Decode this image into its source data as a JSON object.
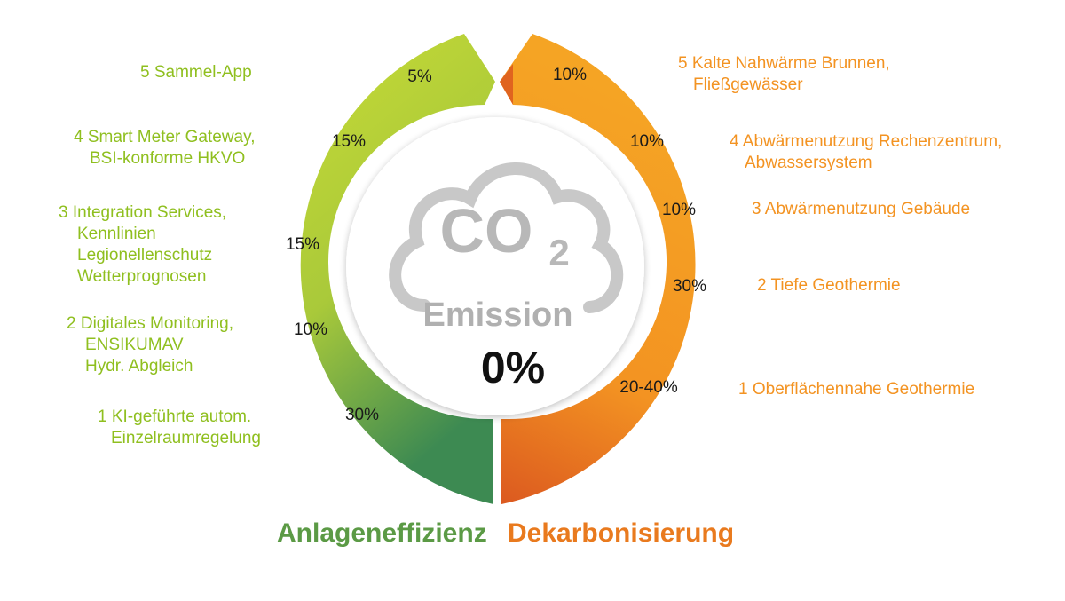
{
  "center": {
    "co2": "CO",
    "co2_sub": "2",
    "emission_label": "Emission",
    "emission_value": "0%"
  },
  "left_ring": {
    "title": "Anlageneffizienz",
    "title_color": "#5b9a45",
    "gradient_colors": [
      "#c5d937",
      "#a8c937",
      "#3e8a50"
    ],
    "segments": [
      {
        "value": "5%",
        "text": [
          "5 Sammel-App"
        ]
      },
      {
        "value": "15%",
        "text": [
          "4 Smart Meter Gateway,",
          "BSI-konforme HKVO"
        ]
      },
      {
        "value": "15%",
        "text": [
          "3 Integration Services,",
          "Kennlinien",
          "Legionellenschutz",
          "Wetterprognosen"
        ]
      },
      {
        "value": "10%",
        "text": [
          "2 Digitales Monitoring,",
          "ENSIKUMAV",
          "Hydr. Abgleich"
        ]
      },
      {
        "value": "30%",
        "text": [
          "1 KI-geführte autom.",
          "Einzelraumregelung"
        ]
      }
    ]
  },
  "right_ring": {
    "title": "Dekarbonisierung",
    "title_color": "#e97a1e",
    "gradient_colors": [
      "#f6a225",
      "#f39322",
      "#d9541f"
    ],
    "segments": [
      {
        "value": "10%",
        "text": [
          "5 Kalte Nahwärme Brunnen,",
          "Fließgewässer"
        ]
      },
      {
        "value": "10%",
        "text": [
          "4 Abwärmenutzung Rechenzentrum,",
          "Abwassersystem"
        ]
      },
      {
        "value": "10%",
        "text": [
          "3 Abwärmenutzung Gebäude"
        ]
      },
      {
        "value": "30%",
        "text": [
          "2 Tiefe Geothermie"
        ]
      },
      {
        "value": "20-40%",
        "text": [
          "1 Oberflächennahe Geothermie"
        ]
      }
    ]
  }
}
